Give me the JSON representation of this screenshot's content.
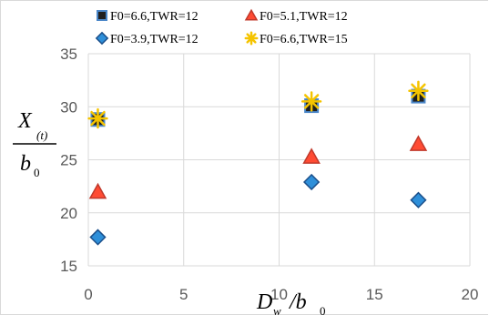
{
  "chart_data": {
    "type": "scatter",
    "title": "",
    "xlabel_main": "D",
    "xlabel_sub": "w",
    "xlabel_rest": "/b",
    "xlabel_rest_sub": "0",
    "ylabel_num_main": "X",
    "ylabel_num_sub": "(t)",
    "ylabel_den_main": "b",
    "ylabel_den_sub": "0",
    "xlim": [
      0,
      20
    ],
    "ylim": [
      15,
      35
    ],
    "xticks": [
      0,
      5,
      10,
      15,
      20
    ],
    "yticks": [
      15,
      20,
      25,
      30,
      35
    ],
    "grid": true,
    "legend_position": "top",
    "series": [
      {
        "name": "F0=6.6,TWR=12",
        "marker": "square",
        "color": "#1f1f1f",
        "edge": "#4a86c8",
        "x": [
          0.5,
          11.7,
          17.3
        ],
        "y": [
          28.8,
          30.1,
          31.0
        ]
      },
      {
        "name": "F0=5.1,TWR=12",
        "marker": "triangle",
        "color": "#ff4b33",
        "edge": "#c0392b",
        "x": [
          0.5,
          11.7,
          17.3
        ],
        "y": [
          22.0,
          25.3,
          26.5
        ]
      },
      {
        "name": "F0=3.9,TWR=12",
        "marker": "diamond",
        "color": "#2e8fd9",
        "edge": "#1b4f8a",
        "x": [
          0.5,
          11.7,
          17.3
        ],
        "y": [
          17.7,
          22.9,
          21.2
        ]
      },
      {
        "name": "F0=6.6,TWR=15",
        "marker": "asterisk",
        "color": "#f5c400",
        "edge": "#f5c400",
        "x": [
          0.5,
          11.7,
          17.3
        ],
        "y": [
          28.9,
          30.5,
          31.5
        ]
      }
    ]
  }
}
